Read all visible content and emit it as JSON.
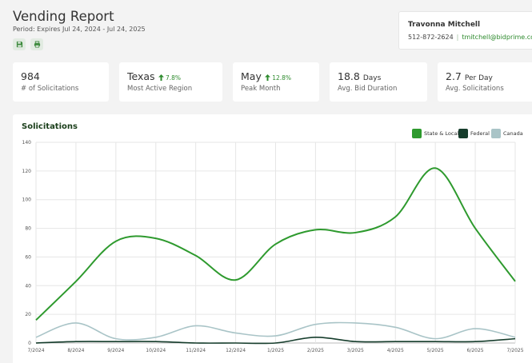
{
  "header": {
    "title": "Vending Report",
    "period": "Period: Expires Jul 24, 2024 - Jul 24, 2025",
    "save_icon": "save-icon",
    "print_icon": "print-icon"
  },
  "contact": {
    "name": "Travonna Mitchell",
    "phone": "512-872-2624",
    "separator": "|",
    "email": "tmitchell@bidprime.com"
  },
  "stats": [
    {
      "value": "984",
      "unit": "",
      "delta": "",
      "label": "# of Solicitations"
    },
    {
      "value": "Texas",
      "unit": "",
      "delta": "7.8%",
      "label": "Most Active Region"
    },
    {
      "value": "May",
      "unit": "",
      "delta": "12.8%",
      "label": "Peak Month"
    },
    {
      "value": "18.8",
      "unit": "Days",
      "delta": "",
      "label": "Avg. Bid Duration"
    },
    {
      "value": "2.7",
      "unit": "Per Day",
      "delta": "",
      "label": "Avg. Solicitations"
    }
  ],
  "chart_data": {
    "type": "line",
    "title": "Solicitations",
    "x": [
      "7/2024",
      "8/2024",
      "9/2024",
      "10/2024",
      "11/2024",
      "12/2024",
      "1/2025",
      "2/2025",
      "3/2025",
      "4/2025",
      "5/2025",
      "6/2025",
      "7/2025"
    ],
    "series": [
      {
        "name": "State & Local",
        "color": "#2e9a2e",
        "values": [
          16,
          43,
          71,
          73,
          61,
          44,
          69,
          79,
          77,
          88,
          122,
          80,
          43
        ]
      },
      {
        "name": "Federal",
        "color": "#163d2c",
        "values": [
          0,
          1,
          1,
          1,
          0,
          0,
          0,
          4,
          1,
          1,
          1,
          1,
          3
        ]
      },
      {
        "name": "Canada",
        "color": "#a9c4c7",
        "values": [
          4,
          14,
          3,
          4,
          12,
          7,
          5,
          13,
          14,
          11,
          3,
          10,
          4
        ]
      }
    ],
    "y_ticks": [
      0,
      20,
      40,
      60,
      80,
      100,
      120,
      140
    ],
    "ylim": [
      0,
      140
    ],
    "grid": true,
    "legend": "top-right"
  }
}
